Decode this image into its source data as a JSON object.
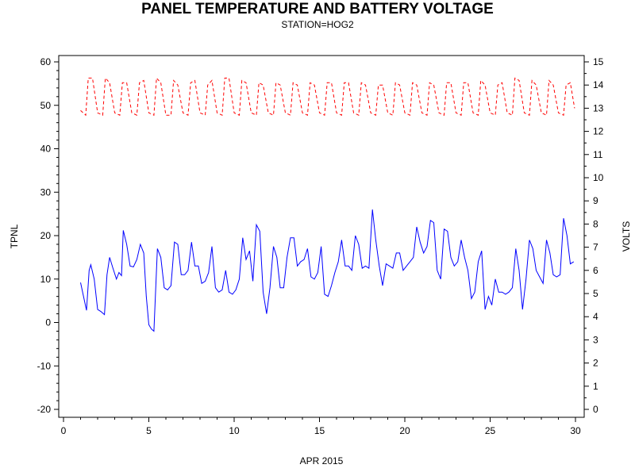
{
  "chart_data": {
    "type": "line",
    "title": "PANEL TEMPERATURE AND BATTERY VOLTAGE",
    "subtitle": "STATION=HOG2",
    "xlabel": "APR 2015",
    "ylabel_left": "TPNL",
    "ylabel_right": "VOLTS",
    "xlim": [
      0,
      30
    ],
    "xticks": [
      0,
      5,
      10,
      15,
      20,
      25,
      30
    ],
    "ylim_left": [
      -20,
      60
    ],
    "yticks_left": [
      -20,
      -10,
      0,
      10,
      20,
      30,
      40,
      50,
      60
    ],
    "ylim_right": [
      0,
      15
    ],
    "yticks_right": [
      0,
      1,
      2,
      3,
      4,
      5,
      6,
      7,
      8,
      9,
      10,
      11,
      12,
      13,
      14,
      15
    ],
    "grid": false,
    "series": [
      {
        "axis": "left",
        "color": "#0000ff",
        "style": "solid",
        "x": [
          1.0,
          1.2,
          1.35,
          1.5,
          1.6,
          1.8,
          2.0,
          2.2,
          2.4,
          2.55,
          2.7,
          2.9,
          3.1,
          3.25,
          3.4,
          3.5,
          3.7,
          3.9,
          4.1,
          4.3,
          4.5,
          4.7,
          4.85,
          5.0,
          5.15,
          5.3,
          5.5,
          5.7,
          5.9,
          6.1,
          6.3,
          6.5,
          6.7,
          6.9,
          7.1,
          7.3,
          7.5,
          7.7,
          7.9,
          8.1,
          8.3,
          8.5,
          8.7,
          8.9,
          9.1,
          9.3,
          9.5,
          9.7,
          9.9,
          10.1,
          10.3,
          10.5,
          10.7,
          10.9,
          11.1,
          11.3,
          11.5,
          11.7,
          11.9,
          12.1,
          12.3,
          12.5,
          12.7,
          12.9,
          13.1,
          13.3,
          13.5,
          13.7,
          13.9,
          14.1,
          14.3,
          14.5,
          14.7,
          14.9,
          15.1,
          15.3,
          15.5,
          15.7,
          15.9,
          16.1,
          16.3,
          16.5,
          16.7,
          16.9,
          17.1,
          17.3,
          17.5,
          17.7,
          17.9,
          18.1,
          18.3,
          18.5,
          18.7,
          18.9,
          19.1,
          19.3,
          19.5,
          19.7,
          19.9,
          20.1,
          20.3,
          20.5,
          20.7,
          20.9,
          21.1,
          21.3,
          21.5,
          21.7,
          21.9,
          22.1,
          22.3,
          22.5,
          22.7,
          22.9,
          23.1,
          23.3,
          23.5,
          23.7,
          23.9,
          24.1,
          24.3,
          24.5,
          24.7,
          24.9,
          25.1,
          25.3,
          25.5,
          25.7,
          25.9,
          26.1,
          26.3,
          26.5,
          26.7,
          26.9,
          27.1,
          27.3,
          27.5,
          27.7,
          27.9,
          28.1,
          28.3,
          28.5,
          28.7,
          28.9,
          29.1,
          29.3,
          29.5,
          29.7,
          29.9
        ],
        "values": [
          9.2,
          5.5,
          2.8,
          12.0,
          13.3,
          10.0,
          3.0,
          2.5,
          1.8,
          11.0,
          15.0,
          12.5,
          10.0,
          11.5,
          10.8,
          21.2,
          18.0,
          13.0,
          12.8,
          14.5,
          18.0,
          16.0,
          6.0,
          -0.5,
          -1.5,
          -2.0,
          17.0,
          15.0,
          8.0,
          7.5,
          8.5,
          18.5,
          18.0,
          11.0,
          11.0,
          12.0,
          18.5,
          13.0,
          13.0,
          9.0,
          9.5,
          11.5,
          17.5,
          8.0,
          7.0,
          7.5,
          12.0,
          7.0,
          6.5,
          7.5,
          10.0,
          19.5,
          14.5,
          16.5,
          9.5,
          22.5,
          21.0,
          7.0,
          2.0,
          8.0,
          17.5,
          15.0,
          8.0,
          8.0,
          15.0,
          19.5,
          19.5,
          13.0,
          14.0,
          14.5,
          17.0,
          10.5,
          10.0,
          11.5,
          17.5,
          6.5,
          6.0,
          8.5,
          11.5,
          14.0,
          19.0,
          13.0,
          13.0,
          12.0,
          20.0,
          18.0,
          12.5,
          13.0,
          12.5,
          26.0,
          19.0,
          13.0,
          8.5,
          13.5,
          13.0,
          12.5,
          16.0,
          16.0,
          12.0,
          13.0,
          14.0,
          15.0,
          22.0,
          18.5,
          16.0,
          17.5,
          23.5,
          23.0,
          12.0,
          10.0,
          21.5,
          21.0,
          15.0,
          13.0,
          14.0,
          19.0,
          15.0,
          12.0,
          5.5,
          7.0,
          14.0,
          16.5,
          3.0,
          6.0,
          4.0,
          10.0,
          7.0,
          7.0,
          6.5,
          7.0,
          8.0,
          17.0,
          12.0,
          3.0,
          10.0,
          19.0,
          17.0,
          12.0,
          10.5,
          9.0,
          19.0,
          16.0,
          11.0,
          10.5,
          11.0,
          24.0,
          20.0,
          13.5,
          14.0
        ]
      },
      {
        "axis": "right",
        "color": "#ff0000",
        "style": "dashed",
        "x": [
          1.0,
          1.3,
          1.45,
          1.7,
          2.0,
          2.3,
          2.45,
          2.7,
          3.0,
          3.3,
          3.45,
          3.7,
          4.0,
          4.3,
          4.45,
          4.7,
          5.0,
          5.3,
          5.45,
          5.7,
          6.0,
          6.3,
          6.45,
          6.7,
          7.0,
          7.3,
          7.45,
          7.7,
          8.0,
          8.3,
          8.45,
          8.7,
          9.0,
          9.3,
          9.45,
          9.7,
          10.0,
          10.3,
          10.45,
          10.7,
          11.0,
          11.3,
          11.45,
          11.7,
          12.0,
          12.3,
          12.45,
          12.7,
          13.0,
          13.3,
          13.45,
          13.7,
          14.0,
          14.3,
          14.45,
          14.7,
          15.0,
          15.3,
          15.45,
          15.7,
          16.0,
          16.3,
          16.45,
          16.7,
          17.0,
          17.3,
          17.45,
          17.7,
          18.0,
          18.3,
          18.45,
          18.7,
          19.0,
          19.3,
          19.45,
          19.7,
          20.0,
          20.3,
          20.45,
          20.7,
          21.0,
          21.3,
          21.45,
          21.7,
          22.0,
          22.3,
          22.45,
          22.7,
          23.0,
          23.3,
          23.45,
          23.7,
          24.0,
          24.3,
          24.45,
          24.7,
          25.0,
          25.3,
          25.45,
          25.7,
          26.0,
          26.3,
          26.45,
          26.7,
          27.0,
          27.3,
          27.45,
          27.7,
          28.0,
          28.3,
          28.45,
          28.7,
          29.0,
          29.3,
          29.45,
          29.7,
          29.95
        ],
        "values": [
          12.9,
          12.7,
          14.3,
          14.3,
          12.8,
          12.7,
          14.3,
          14.1,
          12.8,
          12.7,
          14.1,
          14.1,
          12.8,
          12.7,
          14.1,
          14.2,
          12.8,
          12.7,
          14.3,
          14.1,
          12.7,
          12.7,
          14.2,
          14.0,
          12.8,
          12.7,
          14.1,
          14.2,
          12.8,
          12.7,
          14.0,
          14.2,
          12.8,
          12.7,
          14.3,
          14.3,
          12.8,
          12.7,
          14.2,
          14.1,
          12.8,
          12.7,
          14.1,
          14.0,
          12.8,
          12.7,
          14.1,
          14.0,
          12.8,
          12.7,
          14.1,
          14.0,
          12.8,
          12.7,
          14.1,
          14.0,
          12.8,
          12.7,
          14.1,
          14.1,
          12.8,
          12.7,
          14.1,
          14.1,
          12.8,
          12.7,
          14.1,
          14.0,
          12.8,
          12.7,
          14.0,
          14.0,
          12.8,
          12.7,
          14.1,
          14.0,
          12.8,
          12.7,
          14.1,
          14.0,
          12.8,
          12.7,
          14.1,
          14.0,
          12.8,
          12.7,
          14.1,
          14.1,
          12.8,
          12.7,
          14.1,
          14.1,
          12.8,
          12.7,
          14.2,
          14.0,
          12.8,
          12.7,
          14.0,
          14.1,
          12.8,
          12.7,
          14.3,
          14.2,
          12.8,
          12.7,
          14.2,
          14.0,
          12.8,
          12.7,
          14.2,
          14.0,
          12.8,
          12.7,
          14.0,
          14.1,
          13.0
        ]
      }
    ]
  }
}
